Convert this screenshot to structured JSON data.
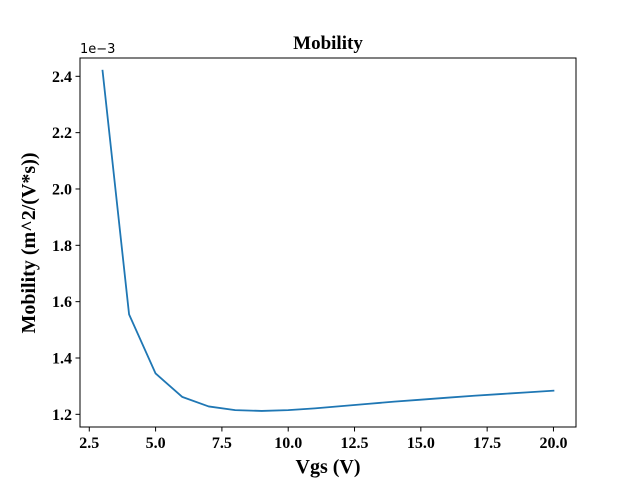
{
  "chart_data": {
    "type": "line",
    "title": "Mobility",
    "xlabel": "Vgs (V)",
    "ylabel": "Mobility (m^2/(V*s))",
    "offset_label": "1e−3",
    "xlim": [
      2.15,
      20.85
    ],
    "ylim": [
      1.155,
      2.465
    ],
    "xticks": [
      2.5,
      5.0,
      7.5,
      10.0,
      12.5,
      15.0,
      17.5,
      20.0
    ],
    "xtick_labels": [
      "2.5",
      "5.0",
      "7.5",
      "10.0",
      "12.5",
      "15.0",
      "17.5",
      "20.0"
    ],
    "yticks": [
      1.2,
      1.4,
      1.6,
      1.8,
      2.0,
      2.2,
      2.4
    ],
    "ytick_labels": [
      "1.2",
      "1.4",
      "1.6",
      "1.8",
      "2.0",
      "2.2",
      "2.4"
    ],
    "grid": false,
    "series": [
      {
        "color": "#1f77b4",
        "x": [
          3,
          4,
          5,
          6,
          7,
          8,
          9,
          10,
          11,
          12,
          13,
          14,
          15,
          16,
          17,
          18,
          19,
          20
        ],
        "y": [
          2.42,
          1.555,
          1.345,
          1.262,
          1.228,
          1.215,
          1.212,
          1.215,
          1.221,
          1.229,
          1.237,
          1.245,
          1.252,
          1.259,
          1.266,
          1.272,
          1.278,
          1.284
        ]
      }
    ]
  }
}
